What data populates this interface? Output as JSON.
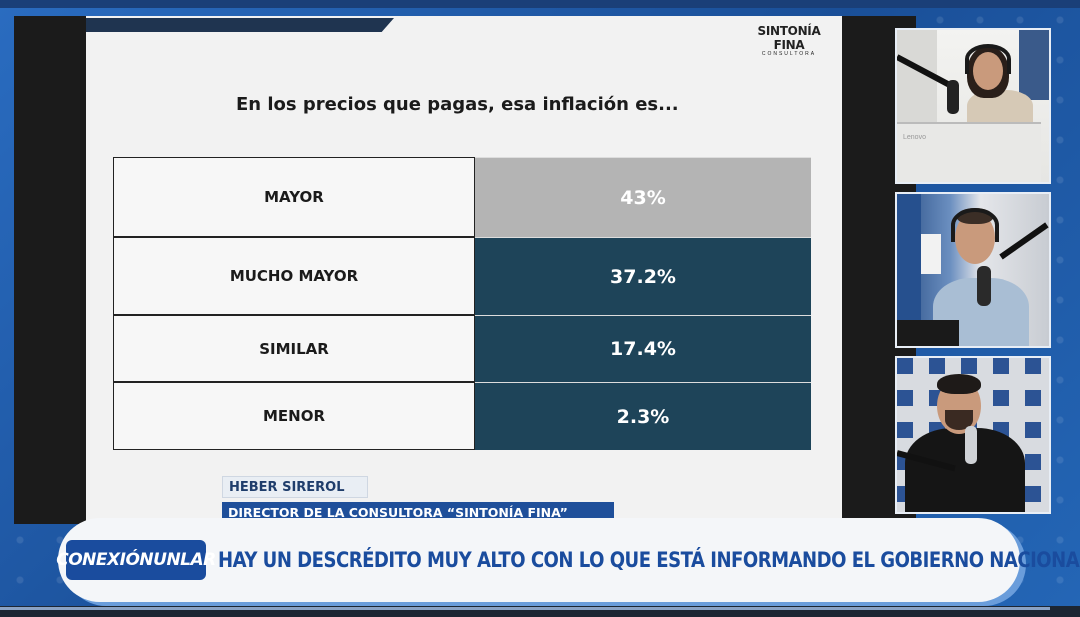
{
  "slide": {
    "brand_name": "SINTONÍA FINA",
    "brand_sub": "CONSULTORA",
    "question": "En los precios que pagas, esa inflación es...",
    "rows": [
      {
        "label": "MAYOR",
        "value": "43%",
        "color": "#b4b4b4"
      },
      {
        "label": "MUCHO MAYOR",
        "value": "37.2%",
        "color": "#1e4459"
      },
      {
        "label": "SIMILAR",
        "value": "17.4%",
        "color": "#1e4459"
      },
      {
        "label": "MENOR",
        "value": "2.3%",
        "color": "#1e4459"
      }
    ]
  },
  "chart_data": {
    "type": "table",
    "title": "En los precios que pagas, esa inflación es...",
    "categories": [
      "MAYOR",
      "MUCHO MAYOR",
      "SIMILAR",
      "MENOR"
    ],
    "values": [
      43,
      37.2,
      17.4,
      2.3
    ]
  },
  "lower_third": {
    "name": "HEBER SIREROL",
    "role": "DIRECTOR DE LA CONSULTORA “SINTONÍA FINA”"
  },
  "headline": {
    "program_part1": "CONEXIÓN",
    "program_part2": "UNLAR",
    "text": "HAY UN DESCRÉDITO MUY ALTO CON LO QUE ESTÁ INFORMANDO EL GOBIERNO NACIONAL"
  },
  "videos": [
    {
      "icon": "video-feed-host-1",
      "laptop_label": "Lenovo"
    },
    {
      "icon": "video-feed-host-2"
    },
    {
      "icon": "video-feed-guest"
    }
  ],
  "colors": {
    "accent": "#1a4c9e",
    "table_dark": "#1e4459",
    "table_light": "#b4b4b4"
  }
}
